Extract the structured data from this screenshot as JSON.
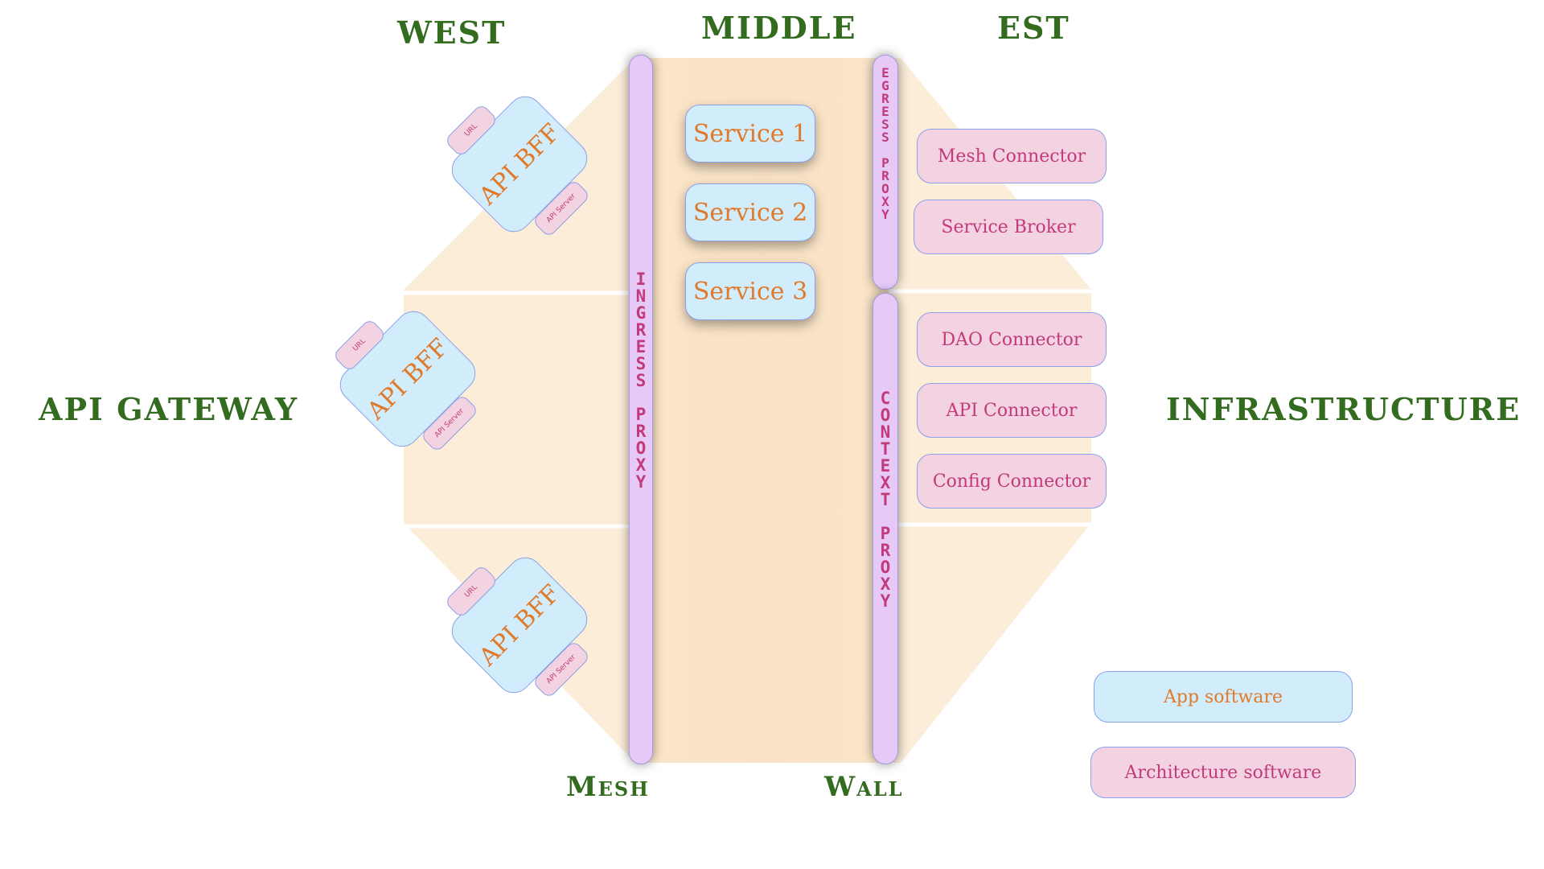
{
  "regions": {
    "west": "WEST",
    "middle": "MIDDLE",
    "est": "EST",
    "api_gateway": "API GATEWAY",
    "infrastructure": "INFRASTRUCTURE",
    "mesh": "Mesh",
    "wall": "Wall"
  },
  "proxies": {
    "ingress": "INGRESS PROXY",
    "egress": "EGRESS PROXY",
    "context": "CONTEXT PROXY"
  },
  "services": [
    "Service 1",
    "Service 2",
    "Service 3"
  ],
  "api_bffs": [
    {
      "title": "API BFF",
      "url_tag": "URL",
      "server_tag": "API Server"
    },
    {
      "title": "API BFF",
      "url_tag": "URL",
      "server_tag": "API Server"
    },
    {
      "title": "API BFF",
      "url_tag": "URL",
      "server_tag": "API Server"
    }
  ],
  "connectors": {
    "egress": [
      "Mesh Connector",
      "Service Broker"
    ],
    "context": [
      "DAO Connector",
      "API Connector",
      "Config Connector"
    ]
  },
  "legend": {
    "app": "App software",
    "arch": "Architecture software"
  },
  "colors": {
    "region_text": "#336b1f",
    "app_fill": "#d1ecfa",
    "app_text": "#e07a2a",
    "arch_fill": "#f3d3e1",
    "arch_text": "#c23a7a",
    "proxy_fill": "#e6c9f7",
    "octagon_fill": "#fbebd3"
  }
}
